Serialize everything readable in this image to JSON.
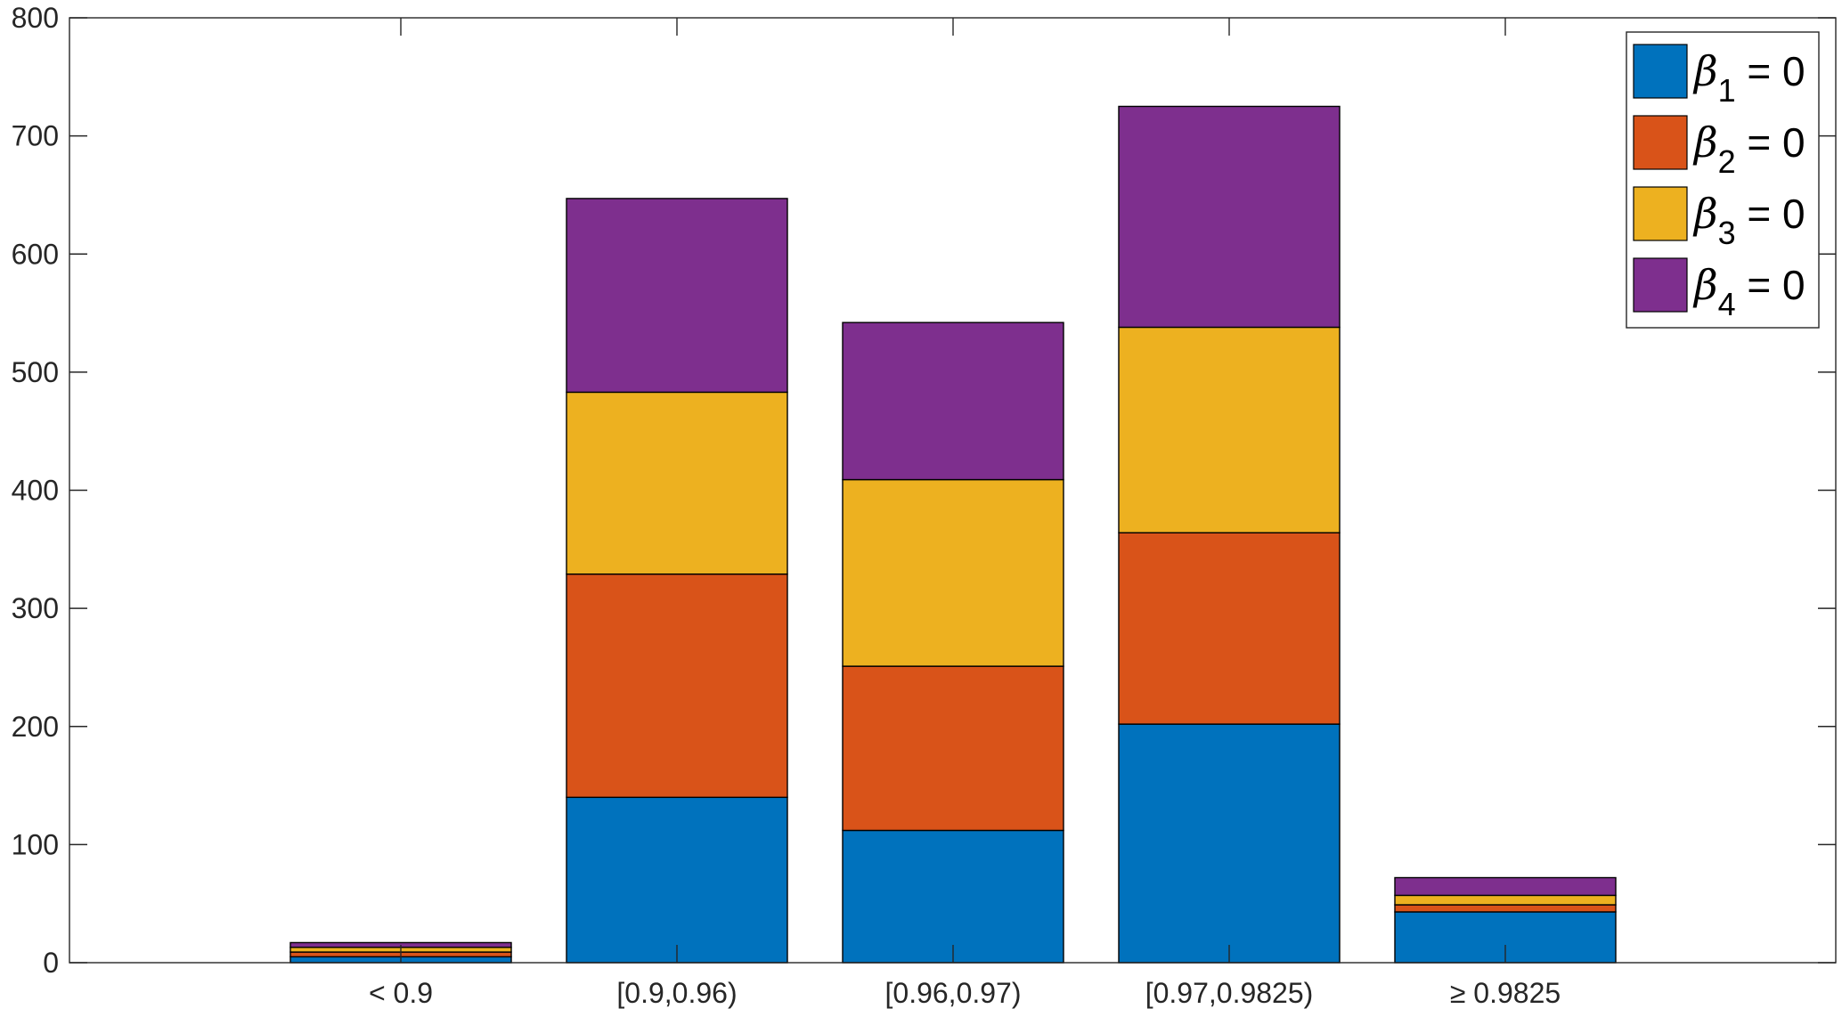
{
  "chart_data": {
    "type": "bar",
    "stacked": true,
    "title": "",
    "xlabel": "",
    "ylabel": "",
    "categories": [
      "< 0.9",
      "[0.9,0.96)",
      "[0.96,0.97)",
      "[0.97,0.9825)",
      "≥ 0.9825"
    ],
    "ylim": [
      0,
      800
    ],
    "yticks": [
      0,
      100,
      200,
      300,
      400,
      500,
      600,
      700,
      800
    ],
    "grid": false,
    "legend_position": "top-right",
    "series": [
      {
        "name": "β1 = 0",
        "symbol": "β",
        "subscript": "1",
        "suffix": " = 0",
        "color": "#0072BD",
        "values": [
          5,
          140,
          112,
          202,
          43
        ]
      },
      {
        "name": "β2 = 0",
        "symbol": "β",
        "subscript": "2",
        "suffix": " = 0",
        "color": "#D95319",
        "values": [
          4,
          189,
          139,
          162,
          6
        ]
      },
      {
        "name": "β3 = 0",
        "symbol": "β",
        "subscript": "3",
        "suffix": " = 0",
        "color": "#EDB120",
        "values": [
          4,
          154,
          158,
          174,
          8
        ]
      },
      {
        "name": "β4 = 0",
        "symbol": "β",
        "subscript": "4",
        "suffix": " = 0",
        "color": "#7E2F8E",
        "values": [
          4,
          164,
          133,
          187,
          15
        ]
      }
    ]
  }
}
